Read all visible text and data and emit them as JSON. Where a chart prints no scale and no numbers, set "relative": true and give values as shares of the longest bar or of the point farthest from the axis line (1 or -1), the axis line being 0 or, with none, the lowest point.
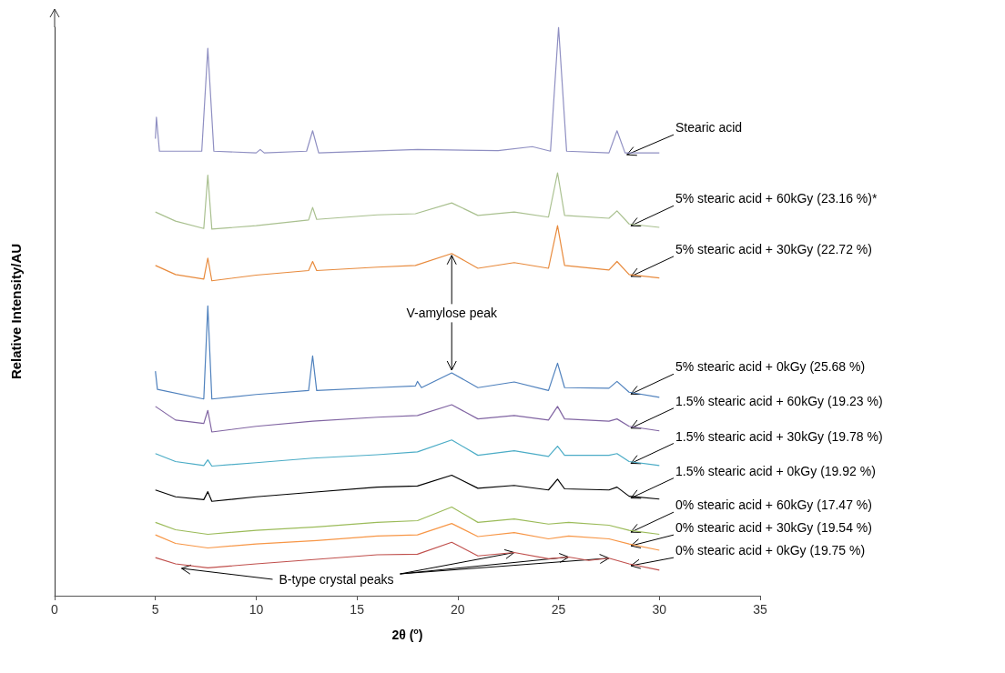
{
  "chart_data": {
    "type": "line",
    "relative": true,
    "xlabel": "2θ ($^{o}$)",
    "ylabel": "Relative Intensity/AU",
    "xlim": [
      0,
      35
    ],
    "xticks": [
      0,
      5,
      10,
      15,
      20,
      25,
      30,
      35
    ],
    "series": [
      {
        "name": "Stearic acid",
        "color": "#8f8fc2",
        "x": [
          5.0,
          5.05,
          5.2,
          7.3,
          7.6,
          7.9,
          10.0,
          10.2,
          10.4,
          12.5,
          12.8,
          13.1,
          18.0,
          22.0,
          23.7,
          24.6,
          25.0,
          25.4,
          27.5,
          27.9,
          28.3,
          30.0
        ],
        "values": [
          0.804,
          0.842,
          0.782,
          0.782,
          0.963,
          0.782,
          0.779,
          0.785,
          0.779,
          0.782,
          0.818,
          0.779,
          0.785,
          0.783,
          0.79,
          0.782,
          1.0,
          0.782,
          0.779,
          0.818,
          0.779,
          0.779
        ]
      },
      {
        "name": "5% stearic acid + 60kGy (23.16 %)*",
        "color": "#a9c08f",
        "x": [
          5.0,
          6.0,
          7.4,
          7.6,
          7.8,
          10.0,
          12.6,
          12.8,
          13.0,
          16.0,
          17.9,
          19.7,
          21.0,
          22.8,
          24.5,
          24.95,
          25.3,
          27.5,
          27.9,
          28.5,
          30.0
        ],
        "values": [
          0.675,
          0.659,
          0.646,
          0.74,
          0.645,
          0.651,
          0.661,
          0.683,
          0.662,
          0.67,
          0.672,
          0.691,
          0.669,
          0.675,
          0.666,
          0.744,
          0.669,
          0.664,
          0.677,
          0.654,
          0.648
        ]
      },
      {
        "name": "5% stearic acid + 30kGy (22.72 %)",
        "color": "#e88a3c",
        "x": [
          5.0,
          6.0,
          7.4,
          7.6,
          7.8,
          10.0,
          12.6,
          12.8,
          13.0,
          16.0,
          17.9,
          19.7,
          21.0,
          22.8,
          24.5,
          24.95,
          25.3,
          27.5,
          27.9,
          28.5,
          30.0
        ],
        "values": [
          0.581,
          0.565,
          0.557,
          0.594,
          0.554,
          0.564,
          0.572,
          0.588,
          0.572,
          0.578,
          0.581,
          0.602,
          0.576,
          0.586,
          0.576,
          0.651,
          0.581,
          0.573,
          0.588,
          0.565,
          0.559
        ]
      },
      {
        "name": "5% stearic acid + 0kGy (25.68 %)",
        "color": "#4f81bd",
        "x": [
          5.0,
          5.1,
          7.4,
          7.6,
          7.8,
          10.0,
          12.6,
          12.8,
          13.0,
          16.0,
          17.9,
          18.0,
          18.2,
          19.7,
          21.0,
          22.8,
          24.5,
          24.95,
          25.3,
          27.5,
          27.9,
          28.5,
          30.0
        ],
        "values": [
          0.395,
          0.363,
          0.346,
          0.51,
          0.346,
          0.354,
          0.361,
          0.422,
          0.361,
          0.366,
          0.369,
          0.377,
          0.366,
          0.392,
          0.366,
          0.376,
          0.361,
          0.409,
          0.366,
          0.365,
          0.377,
          0.358,
          0.349
        ]
      },
      {
        "name": "1.5% stearic acid + 60kGy (19.23 %)",
        "color": "#8064a2",
        "x": [
          5.0,
          6.0,
          7.4,
          7.6,
          7.8,
          10.0,
          12.8,
          16.0,
          18.0,
          19.7,
          21.0,
          22.8,
          24.5,
          24.95,
          25.3,
          27.5,
          27.9,
          28.5,
          30.0
        ],
        "values": [
          0.333,
          0.309,
          0.303,
          0.326,
          0.288,
          0.298,
          0.307,
          0.314,
          0.317,
          0.336,
          0.311,
          0.317,
          0.309,
          0.333,
          0.311,
          0.307,
          0.311,
          0.298,
          0.29
        ]
      },
      {
        "name": "1.5% stearic acid + 30kGy (19.78 %)",
        "color": "#4bacc6",
        "x": [
          5.0,
          6.0,
          7.4,
          7.6,
          7.8,
          10.0,
          12.8,
          16.0,
          18.0,
          19.7,
          21.0,
          22.8,
          24.5,
          24.95,
          25.3,
          27.5,
          27.9,
          28.5,
          30.0
        ],
        "values": [
          0.25,
          0.236,
          0.229,
          0.239,
          0.228,
          0.234,
          0.242,
          0.248,
          0.253,
          0.274,
          0.247,
          0.255,
          0.245,
          0.263,
          0.247,
          0.247,
          0.25,
          0.236,
          0.229
        ]
      },
      {
        "name": "1.5% stearic acid + 0kGy (19.92 %)",
        "color": "#000000",
        "x": [
          5.0,
          6.0,
          7.4,
          7.6,
          7.8,
          10.0,
          12.8,
          16.0,
          18.0,
          19.7,
          21.0,
          22.8,
          24.5,
          24.95,
          25.3,
          27.5,
          27.9,
          28.5,
          30.0
        ],
        "values": [
          0.186,
          0.174,
          0.169,
          0.183,
          0.166,
          0.174,
          0.182,
          0.191,
          0.193,
          0.212,
          0.189,
          0.194,
          0.186,
          0.205,
          0.188,
          0.186,
          0.191,
          0.175,
          0.17
        ]
      },
      {
        "name": "0% stearic acid + 60kGy (17.47 %)",
        "color": "#9bbb59",
        "x": [
          5.0,
          6.0,
          7.6,
          10.0,
          13.0,
          16.0,
          18.0,
          19.7,
          21.0,
          22.8,
          24.5,
          25.5,
          27.5,
          28.5,
          30.0
        ],
        "values": [
          0.129,
          0.116,
          0.108,
          0.115,
          0.121,
          0.129,
          0.132,
          0.156,
          0.129,
          0.135,
          0.126,
          0.129,
          0.124,
          0.115,
          0.108
        ]
      },
      {
        "name": "0% stearic acid + 30kGy (19.54 %)",
        "color": "#f79646",
        "x": [
          5.0,
          6.0,
          7.6,
          10.0,
          13.0,
          16.0,
          18.0,
          19.7,
          21.0,
          22.8,
          24.5,
          25.5,
          27.5,
          28.5,
          30.0
        ],
        "values": [
          0.107,
          0.092,
          0.084,
          0.091,
          0.097,
          0.105,
          0.107,
          0.127,
          0.104,
          0.111,
          0.1,
          0.105,
          0.1,
          0.091,
          0.08
        ]
      },
      {
        "name": "0% stearic acid + 0kGy (19.75 %)",
        "color": "#c0504d",
        "x": [
          5.0,
          6.0,
          7.6,
          10.0,
          13.0,
          16.0,
          18.0,
          19.7,
          21.0,
          22.8,
          24.5,
          25.5,
          26.5,
          27.5,
          28.5,
          30.0
        ],
        "values": [
          0.067,
          0.056,
          0.049,
          0.056,
          0.064,
          0.072,
          0.073,
          0.094,
          0.07,
          0.076,
          0.065,
          0.068,
          0.062,
          0.066,
          0.056,
          0.045
        ]
      }
    ],
    "annotations": [
      {
        "text": "V-amylose peak",
        "x": 19.7,
        "y": 0.602
      },
      {
        "text": "B-type crystal peaks",
        "x": 6.3,
        "y": 0.048
      }
    ]
  }
}
